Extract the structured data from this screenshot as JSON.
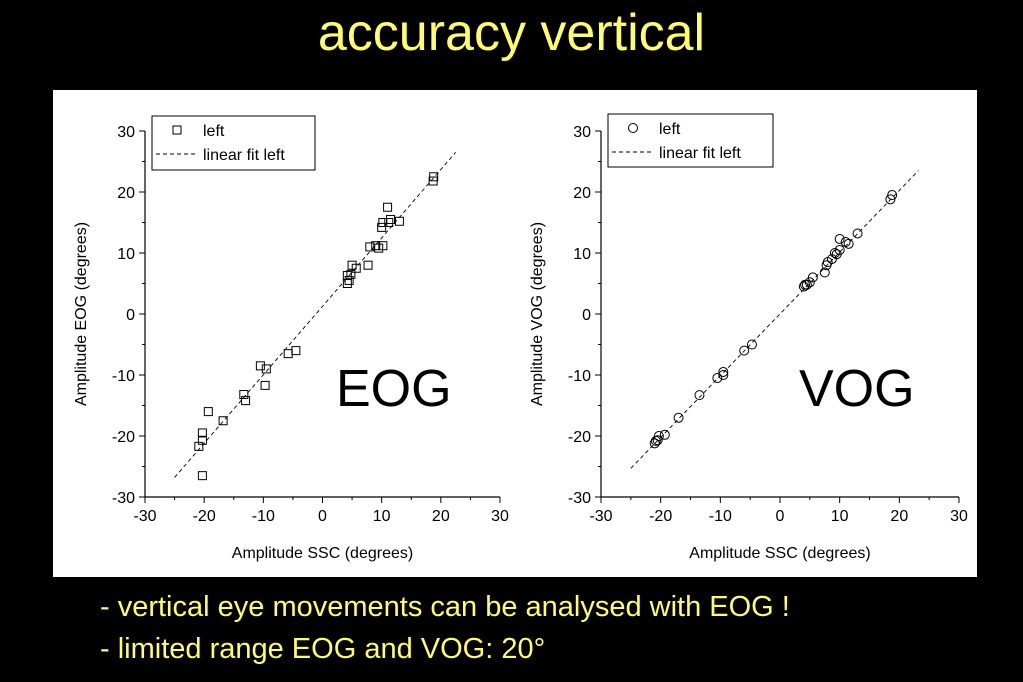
{
  "title": "accuracy vertical",
  "bullets": [
    "- vertical eye movements can be analysed with EOG !",
    "- limited range EOG and VOG: 20°"
  ],
  "colors": {
    "background": "#000000",
    "text": "#ffff66",
    "panel": "#ffffff"
  },
  "chart_data": [
    {
      "type": "scatter",
      "label": "EOG",
      "xlabel": "Amplitude SSC (degrees)",
      "ylabel": "Amplitude EOG (degrees)",
      "xlim": [
        -30,
        30
      ],
      "ylim": [
        -30,
        30
      ],
      "xticks": [
        "-30",
        "-20",
        "-10",
        "0",
        "10",
        "20",
        "30"
      ],
      "yticks": [
        "30",
        "20",
        "10",
        "0",
        "-10",
        "-20",
        "-30"
      ],
      "legend": [
        "left",
        "linear fit left"
      ],
      "legend_position": "top-left",
      "marker": "square",
      "fit": {
        "x": [
          -25,
          22.5
        ],
        "y": [
          -26.8,
          26.5
        ]
      },
      "series": [
        {
          "name": "left",
          "points": [
            [
              18.8,
              22.5
            ],
            [
              18.7,
              21.8
            ],
            [
              13.0,
              15.2
            ],
            [
              11.5,
              15.5
            ],
            [
              11.2,
              15.0
            ],
            [
              11.0,
              17.5
            ],
            [
              10.2,
              15.0
            ],
            [
              10.0,
              14.2
            ],
            [
              10.2,
              11.2
            ],
            [
              9.5,
              10.8
            ],
            [
              9.0,
              11.2
            ],
            [
              8.0,
              11.0
            ],
            [
              7.7,
              8.0
            ],
            [
              5.7,
              7.5
            ],
            [
              5.0,
              8.0
            ],
            [
              4.8,
              6.5
            ],
            [
              4.5,
              5.5
            ],
            [
              4.2,
              5.0
            ],
            [
              4.2,
              6.3
            ],
            [
              -4.5,
              -6.0
            ],
            [
              -5.8,
              -6.5
            ],
            [
              -9.5,
              -9.0
            ],
            [
              -9.7,
              -11.7
            ],
            [
              -10.5,
              -8.5
            ],
            [
              -13.0,
              -14.2
            ],
            [
              -13.3,
              -13.2
            ],
            [
              -16.8,
              -17.5
            ],
            [
              -19.3,
              -16.0
            ],
            [
              -20.3,
              -19.5
            ],
            [
              -20.3,
              -20.7
            ],
            [
              -20.9,
              -21.7
            ],
            [
              -20.3,
              -26.5
            ]
          ]
        }
      ]
    },
    {
      "type": "scatter",
      "label": "VOG",
      "xlabel": "Amplitude SSC (degrees)",
      "ylabel": "Amplitude VOG (degrees)",
      "xlim": [
        -30,
        30
      ],
      "ylim": [
        -30,
        30
      ],
      "xticks": [
        "-30",
        "-20",
        "-10",
        "0",
        "10",
        "20",
        "30"
      ],
      "yticks": [
        "30",
        "20",
        "10",
        "0",
        "-10",
        "-20",
        "-30"
      ],
      "legend": [
        "left",
        "linear fit left"
      ],
      "legend_position": "top-left",
      "marker": "circle",
      "fit": {
        "x": [
          -25,
          23.2
        ],
        "y": [
          -25.3,
          23.5
        ]
      },
      "series": [
        {
          "name": "left",
          "points": [
            [
              18.8,
              19.5
            ],
            [
              18.5,
              18.8
            ],
            [
              13.0,
              13.2
            ],
            [
              11.5,
              11.5
            ],
            [
              11.0,
              11.8
            ],
            [
              10.0,
              12.3
            ],
            [
              10.0,
              10.5
            ],
            [
              9.5,
              9.8
            ],
            [
              9.2,
              10.0
            ],
            [
              8.7,
              9.0
            ],
            [
              8.0,
              8.5
            ],
            [
              7.8,
              8.0
            ],
            [
              7.5,
              6.8
            ],
            [
              5.5,
              6.0
            ],
            [
              5.0,
              5.2
            ],
            [
              4.5,
              4.8
            ],
            [
              4.0,
              4.5
            ],
            [
              4.2,
              4.8
            ],
            [
              -4.7,
              -5.0
            ],
            [
              -6.0,
              -6.0
            ],
            [
              -9.5,
              -9.5
            ],
            [
              -9.5,
              -10.0
            ],
            [
              -10.5,
              -10.5
            ],
            [
              -13.5,
              -13.3
            ],
            [
              -17.0,
              -17.0
            ],
            [
              -19.3,
              -19.8
            ],
            [
              -20.3,
              -20.0
            ],
            [
              -20.5,
              -20.7
            ],
            [
              -21.0,
              -21.2
            ],
            [
              -20.8,
              -20.8
            ]
          ]
        }
      ]
    }
  ]
}
